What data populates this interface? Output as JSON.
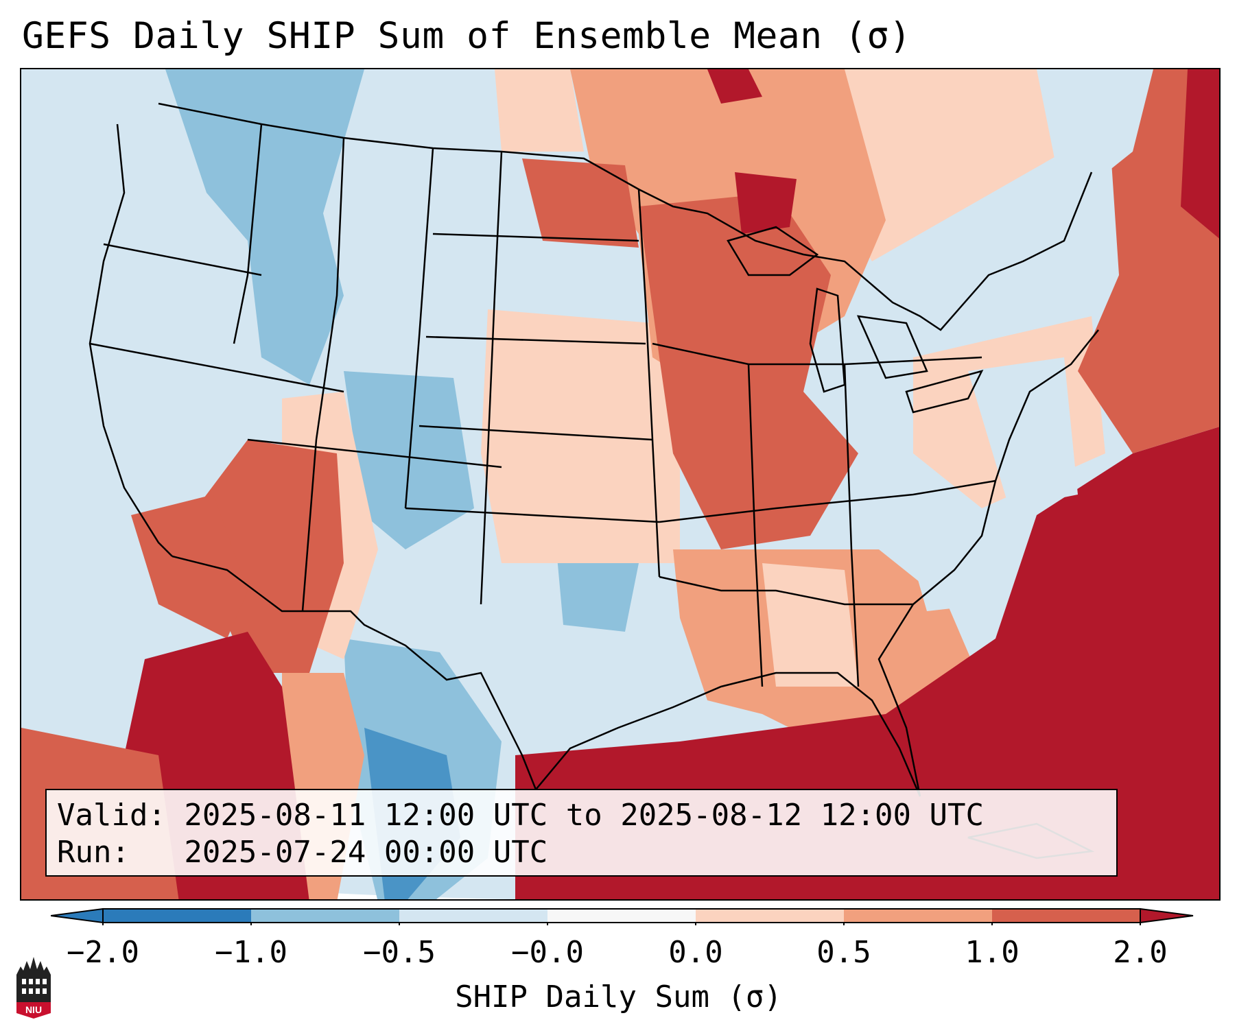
{
  "title": "GEFS Daily SHIP Sum of Ensemble Mean (σ)",
  "info": {
    "valid_line": "Valid: 2025-08-11 12:00 UTC to 2025-08-12 12:00 UTC",
    "run_line": "Run:   2025-07-24 00:00 UTC"
  },
  "colorbar": {
    "label": "SHIP Daily Sum (σ)",
    "ticks": [
      "−2.0",
      "−1.0",
      "−0.5",
      "−0.0",
      "0.0",
      "0.5",
      "1.0",
      "2.0"
    ],
    "colors": [
      "#2b7bba",
      "#8ec1dc",
      "#d4e6f1",
      "#f7f7f7",
      "#fbd3bf",
      "#f1a07e",
      "#d6604d",
      "#b2182b"
    ],
    "extend": "both"
  },
  "logo_text": "NIU",
  "map": {
    "region": "Contiguous United States",
    "colors": {
      "deep_blue": "#2b7bba",
      "mid_blue": "#8ec1dc",
      "light_blue": "#d4e6f1",
      "white": "#f7f7f7",
      "light_peach": "#fbd3bf",
      "salmon": "#f1a07e",
      "red": "#d6604d",
      "dark_red": "#b2182b"
    }
  }
}
